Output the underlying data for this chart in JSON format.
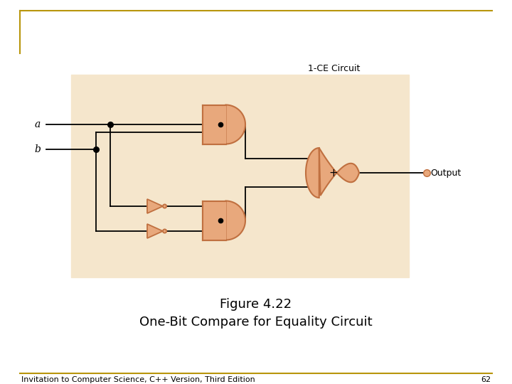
{
  "bg_color": "#ffffff",
  "border_color": "#b8960c",
  "circuit_bg": "#f5e6cc",
  "gate_color": "#e8a87c",
  "gate_edge": "#c07040",
  "wire_color": "#000000",
  "dot_color": "#000000",
  "output_dot_color": "#e8a87c",
  "text_color": "#000000",
  "title_text": "Figure 4.22",
  "subtitle_text": "One-Bit Compare for Equality Circuit",
  "footer_text": "Invitation to Computer Science, C++ Version, Third Edition",
  "page_number": "62",
  "label_ce": "1-CE Circuit",
  "label_a": "a",
  "label_b": "b",
  "label_output": "Output",
  "label_plus": "+",
  "title_fontsize": 13,
  "subtitle_fontsize": 13,
  "footer_fontsize": 8
}
